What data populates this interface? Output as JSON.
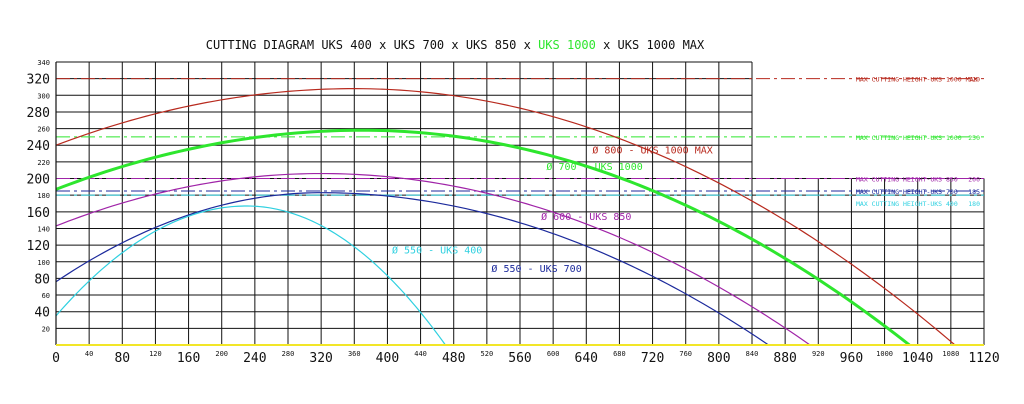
{
  "chart_data": {
    "type": "line",
    "title_parts": [
      {
        "text": "CUTTING DIAGRAM UKS 400 x UKS 700 x UKS 850 x ",
        "color": "#111111"
      },
      {
        "text": "UKS 1000",
        "color": "#2ee62e"
      },
      {
        "text": " x UKS 1000 MAX",
        "color": "#111111"
      }
    ],
    "xlim": [
      0,
      1120
    ],
    "ylim": [
      0,
      340
    ],
    "x_ticks": [
      0,
      40,
      80,
      120,
      160,
      200,
      240,
      280,
      320,
      360,
      400,
      440,
      480,
      520,
      560,
      600,
      640,
      680,
      720,
      760,
      800,
      840,
      880,
      920,
      960,
      1000,
      1040,
      1080,
      1120
    ],
    "x_major_ticks": [
      0,
      80,
      160,
      240,
      320,
      400,
      480,
      560,
      640,
      720,
      800,
      880,
      960,
      1040,
      1120
    ],
    "y_ticks": [
      0,
      20,
      40,
      60,
      80,
      100,
      120,
      140,
      160,
      180,
      200,
      220,
      240,
      260,
      280,
      300,
      320,
      340
    ],
    "y_major_ticks": [
      40,
      80,
      120,
      160,
      200,
      240,
      280,
      320
    ],
    "grid": true,
    "series": [
      {
        "name": "Ø 800 - UKS 1000 MAX",
        "color": "#b82a1e",
        "width": 1.2,
        "x": [
          0,
          360,
          1085
        ],
        "y": [
          240,
          308,
          0
        ],
        "apex_index": 1,
        "label_pos": [
          720,
          230
        ]
      },
      {
        "name": "Ø 700 - UKS 1000",
        "color": "#2ee62e",
        "width": 3,
        "x": [
          0,
          370,
          1030
        ],
        "y": [
          187,
          258,
          0
        ],
        "apex_index": 1,
        "label_pos": [
          650,
          210
        ]
      },
      {
        "name": "Ø 600 - UKS 850",
        "color": "#a024a8",
        "width": 1.2,
        "x": [
          0,
          320,
          910
        ],
        "y": [
          143,
          206,
          0
        ],
        "apex_index": 1,
        "label_pos": [
          640,
          150
        ]
      },
      {
        "name": "Ø 550 - UKS 700",
        "color": "#1c2a9c",
        "width": 1.2,
        "x": [
          0,
          320,
          860
        ],
        "y": [
          76,
          183,
          0
        ],
        "apex_index": 1,
        "label_pos": [
          580,
          88
        ]
      },
      {
        "name": "Ø 550 - UKS 400",
        "color": "#2ed0e0",
        "width": 1.2,
        "x": [
          0,
          230,
          470
        ],
        "y": [
          35,
          167,
          0
        ],
        "apex_index": 1,
        "label_pos": [
          460,
          110
        ]
      }
    ],
    "max_heights": [
      {
        "label": "MAX CUTTING HEIGHT-UKS 1000 MAX",
        "value": "320",
        "y": 320,
        "color": "#b82a1e"
      },
      {
        "label": "MAX CUTTING HEIGHT-UKS 1000",
        "value": "250",
        "y": 250,
        "color": "#2ee62e"
      },
      {
        "label": "MAX CUTTING HEIGHT-UKS 850",
        "value": "200",
        "y": 200,
        "color": "#a024a8"
      },
      {
        "label": "MAX CUTTING HEIGHT-UKS 700",
        "value": "185",
        "y": 185,
        "color": "#1c2a9c"
      },
      {
        "label": "MAX CUTTING HEIGHT-UKS 400",
        "value": "180",
        "y": 180,
        "color": "#2ed0e0"
      }
    ]
  }
}
